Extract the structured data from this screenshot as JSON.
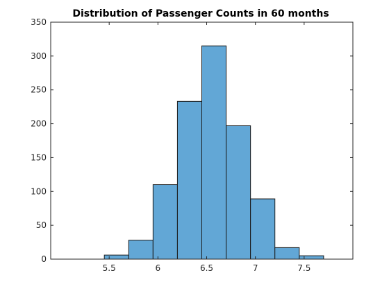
{
  "chart_data": {
    "type": "bar",
    "title": "Distribution of Passenger Counts in 60 months",
    "xlabel": "",
    "ylabel": "",
    "xlim": [
      4.9,
      8.0
    ],
    "ylim": [
      0,
      350
    ],
    "bin_edges": [
      5.45,
      5.7,
      5.95,
      6.2,
      6.45,
      6.7,
      6.95,
      7.2,
      7.45,
      7.7
    ],
    "values": [
      6,
      28,
      110,
      233,
      315,
      197,
      89,
      17,
      5
    ],
    "x_ticks": [
      5.5,
      6,
      6.5,
      7,
      7.5
    ],
    "x_tick_labels": [
      "5.5",
      "6",
      "6.5",
      "7",
      "7.5"
    ],
    "y_ticks": [
      0,
      50,
      100,
      150,
      200,
      250,
      300,
      350
    ],
    "y_tick_labels": [
      "0",
      "50",
      "100",
      "150",
      "200",
      "250",
      "300",
      "350"
    ],
    "bar_color": "#62a7d6",
    "grid": false,
    "legend": "none"
  }
}
